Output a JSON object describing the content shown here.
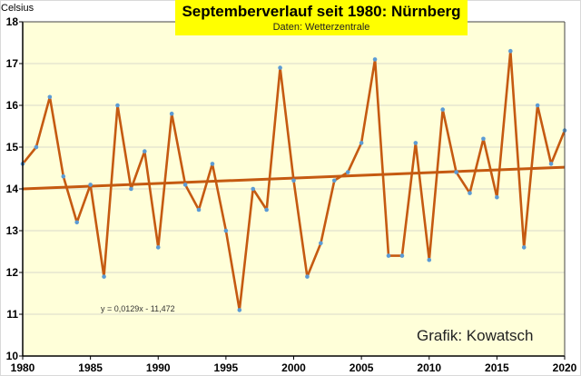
{
  "chart_data": {
    "type": "line",
    "title": "Septemberverlauf seit 1980: Nürnberg",
    "subtitle": "Daten: Wetterzentrale",
    "ylabel": "Celsius",
    "xlabel": "",
    "credit": "Grafik: Kowatsch",
    "equation": "y = 0,0129x - 11,472",
    "xlim": [
      1980,
      2020
    ],
    "ylim": [
      10,
      18
    ],
    "grid": true,
    "x_ticks": [
      "1980",
      "1985",
      "1990",
      "1995",
      "2000",
      "2005",
      "2010",
      "2015",
      "2020"
    ],
    "y_ticks": [
      "10",
      "11",
      "12",
      "13",
      "14",
      "15",
      "16",
      "17",
      "18"
    ],
    "x": [
      1980,
      1981,
      1982,
      1983,
      1984,
      1985,
      1986,
      1987,
      1988,
      1989,
      1990,
      1991,
      1992,
      1993,
      1994,
      1995,
      1996,
      1997,
      1998,
      1999,
      2000,
      2001,
      2002,
      2003,
      2004,
      2005,
      2006,
      2007,
      2008,
      2009,
      2010,
      2011,
      2012,
      2013,
      2014,
      2015,
      2016,
      2017,
      2018,
      2019,
      2020
    ],
    "series": [
      {
        "name": "September",
        "values": [
          14.6,
          15.0,
          16.2,
          14.3,
          13.2,
          14.1,
          11.9,
          16.0,
          14.0,
          14.9,
          12.6,
          15.8,
          14.1,
          13.5,
          14.6,
          13.0,
          11.1,
          14.0,
          13.5,
          16.9,
          14.2,
          11.9,
          12.7,
          14.2,
          14.4,
          15.1,
          17.1,
          12.4,
          12.4,
          15.1,
          12.3,
          15.9,
          14.4,
          13.9,
          15.2,
          13.8,
          17.3,
          12.6,
          16.0,
          14.6,
          15.4
        ]
      }
    ],
    "trendline": {
      "start": [
        1980,
        14.0
      ],
      "end": [
        2020,
        14.52
      ]
    },
    "colors": {
      "line": "#c55a11",
      "marker": "#5b9bd5",
      "plot_bg": "#ffffd9",
      "title_bg": "#ffff00",
      "grid": "#e6e6d0"
    }
  }
}
